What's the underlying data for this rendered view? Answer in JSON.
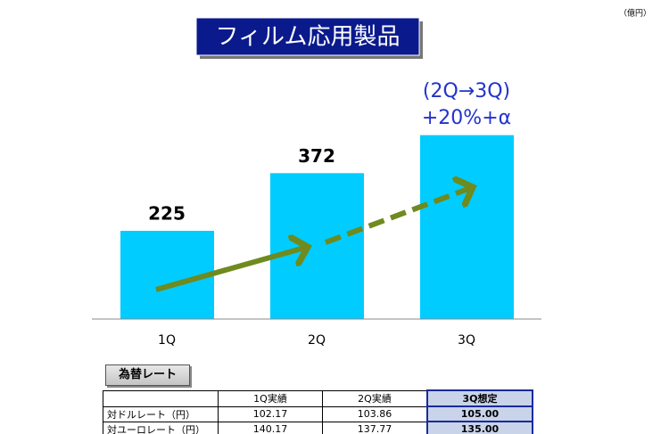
{
  "chart_data": {
    "type": "bar",
    "title": "フィルム応用製品",
    "unit": "（億円）",
    "categories": [
      "1Q",
      "2Q",
      "3Q"
    ],
    "values": [
      225,
      372,
      469
    ],
    "data_labels": [
      true,
      true,
      false
    ],
    "color": "#00ccff",
    "ylim": [
      0,
      500
    ],
    "annotations": [
      "(2Q→3Q)",
      "+20%+α"
    ]
  },
  "button": "為替レート",
  "table": {
    "header": [
      "",
      "1Q実績",
      "2Q実績",
      "3Q想定"
    ],
    "rows": [
      [
        "対ドルレート（円）",
        "102.17",
        "103.86",
        "105.00"
      ],
      [
        "対ユーロレート（円）",
        "140.17",
        "137.77",
        "135.00"
      ]
    ]
  }
}
